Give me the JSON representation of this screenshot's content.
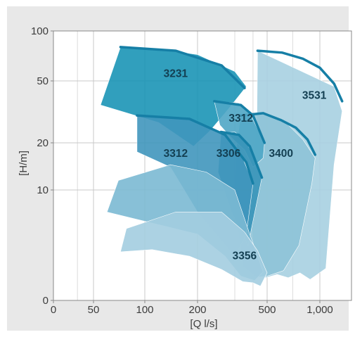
{
  "chart_data": {
    "type": "area",
    "title": "",
    "xlabel": "[Q l/s]",
    "ylabel": "[H/m]",
    "x_scale": "log",
    "y_scale": "log",
    "xlim": [
      0,
      1500
    ],
    "ylim": [
      0,
      100
    ],
    "grid": true,
    "x_ticks": [
      {
        "value": 0,
        "label": "0"
      },
      {
        "value": 50,
        "label": "50"
      },
      {
        "value": 100,
        "label": "100"
      },
      {
        "value": 200,
        "label": "200"
      },
      {
        "value": 500,
        "label": "500"
      },
      {
        "value": 1000,
        "label": "1,000"
      }
    ],
    "x_minor_ticks": [
      30,
      300,
      400,
      700
    ],
    "y_ticks": [
      {
        "value": 0,
        "label": "0"
      },
      {
        "value": 10,
        "label": "10"
      },
      {
        "value": 20,
        "label": "20"
      },
      {
        "value": 50,
        "label": "50"
      },
      {
        "value": 100,
        "label": "100"
      }
    ],
    "regions": [
      {
        "name": "3531",
        "color": "#a7d0e1",
        "curve_color": "#167fa6",
        "outline": [
          [
            430,
            76
          ],
          [
            1200,
            46
          ],
          [
            1330,
            32
          ],
          [
            1200,
            14.5
          ],
          [
            1080,
            2.9
          ],
          [
            880,
            1.9
          ],
          [
            770,
            2.5
          ],
          [
            660,
            2.05
          ],
          [
            570,
            2.35
          ],
          [
            490,
            2.05
          ],
          [
            420,
            2.55
          ],
          [
            390,
            7
          ],
          [
            400,
            16
          ],
          [
            425,
            28
          ]
        ],
        "curve": [
          [
            430,
            76
          ],
          [
            610,
            74
          ],
          [
            800,
            68
          ],
          [
            1000,
            60
          ],
          [
            1200,
            48
          ],
          [
            1330,
            37
          ]
        ]
      },
      {
        "name": "3400",
        "color": "#8ec3d7",
        "curve_color": "#167fa6",
        "outline": [
          [
            330,
            30
          ],
          [
            480,
            31
          ],
          [
            640,
            27
          ],
          [
            800,
            21
          ],
          [
            940,
            16
          ],
          [
            900,
            11
          ],
          [
            760,
            5
          ],
          [
            620,
            2.7
          ],
          [
            500,
            2.2
          ],
          [
            420,
            2.1
          ],
          [
            340,
            3.1
          ],
          [
            300,
            9
          ],
          [
            310,
            20
          ]
        ],
        "curve": [
          [
            330,
            30
          ],
          [
            470,
            31
          ],
          [
            600,
            28
          ],
          [
            730,
            25
          ],
          [
            850,
            21
          ],
          [
            940,
            16.8
          ]
        ]
      },
      {
        "name": "3231",
        "color": "#1b95b6",
        "curve_color": "#167fa6",
        "outline": [
          [
            72,
            80
          ],
          [
            120,
            78
          ],
          [
            200,
            72
          ],
          [
            300,
            57
          ],
          [
            360,
            46
          ],
          [
            280,
            33
          ],
          [
            230,
            24
          ],
          [
            190,
            19
          ],
          [
            120,
            27
          ],
          [
            55,
            35
          ]
        ],
        "curve": [
          [
            72,
            80
          ],
          [
            150,
            76
          ],
          [
            260,
            62
          ],
          [
            350,
            45
          ]
        ]
      },
      {
        "name": "3312",
        "color": "#4fa6c5",
        "curve_color": "#167fa6",
        "outline": [
          [
            240,
            37
          ],
          [
            320,
            36
          ],
          [
            380,
            31
          ],
          [
            480,
            20
          ],
          [
            470,
            16
          ],
          [
            400,
            14
          ],
          [
            350,
            18
          ],
          [
            285,
            22
          ],
          [
            255,
            26
          ]
        ],
        "curve": [
          [
            240,
            37
          ],
          [
            330,
            35
          ],
          [
            400,
            30
          ],
          [
            480,
            20
          ]
        ]
      },
      {
        "name": "3306",
        "color": "#3994b8",
        "curve_color": "#167fa6",
        "outline": [
          [
            258,
            23
          ],
          [
            300,
            23.5
          ],
          [
            350,
            21
          ],
          [
            420,
            15.5
          ],
          [
            460,
            12
          ],
          [
            370,
            5
          ],
          [
            290,
            8
          ],
          [
            250,
            13
          ]
        ],
        "curve": [
          [
            258,
            23.5
          ],
          [
            320,
            22.5
          ],
          [
            380,
            19
          ],
          [
            460,
            12
          ]
        ]
      },
      {
        "name": "3312",
        "color": "#4096bc",
        "curve_color": "#167fa6",
        "outline": [
          [
            90,
            30
          ],
          [
            180,
            28.5
          ],
          [
            270,
            22.5
          ],
          [
            340,
            16
          ],
          [
            400,
            11
          ],
          [
            360,
            6
          ],
          [
            300,
            4
          ],
          [
            200,
            8
          ],
          [
            140,
            14
          ],
          [
            90,
            17.5
          ]
        ],
        "curve": [
          [
            90,
            30
          ],
          [
            180,
            28.5
          ],
          [
            270,
            22.5
          ],
          [
            360,
            15
          ],
          [
            400,
            11
          ]
        ]
      },
      {
        "name": "3356",
        "color": "#7bb9d3",
        "curve_color": null,
        "outline": [
          [
            70,
            11.5
          ],
          [
            140,
            14.5
          ],
          [
            220,
            13
          ],
          [
            300,
            10
          ],
          [
            380,
            6
          ],
          [
            470,
            2.6
          ],
          [
            410,
            1.8
          ],
          [
            330,
            2.2
          ],
          [
            270,
            4
          ],
          [
            200,
            6
          ],
          [
            110,
            7
          ],
          [
            60,
            8
          ]
        ],
        "curve": null
      },
      {
        "name": "",
        "color": "#a3cde0",
        "curve_color": null,
        "outline": [
          [
            78,
            6.5
          ],
          [
            150,
            8
          ],
          [
            260,
            8
          ],
          [
            350,
            6.2
          ],
          [
            430,
            4.5
          ],
          [
            500,
            2.5
          ],
          [
            450,
            1.3
          ],
          [
            400,
            1.6
          ],
          [
            340,
            1.7
          ],
          [
            260,
            2.8
          ],
          [
            180,
            4
          ],
          [
            110,
            4.6
          ],
          [
            72,
            4.4
          ]
        ],
        "curve": null
      }
    ],
    "labels": [
      {
        "text": "3231",
        "x": 150,
        "y": 55
      },
      {
        "text": "3531",
        "x": 930,
        "y": 40
      },
      {
        "text": "3312",
        "x": 330,
        "y": 28.5
      },
      {
        "text": "3312",
        "x": 150,
        "y": 17
      },
      {
        "text": "3306",
        "x": 280,
        "y": 17
      },
      {
        "text": "3400",
        "x": 600,
        "y": 17
      },
      {
        "text": "3356",
        "x": 350,
        "y": 4
      }
    ]
  }
}
